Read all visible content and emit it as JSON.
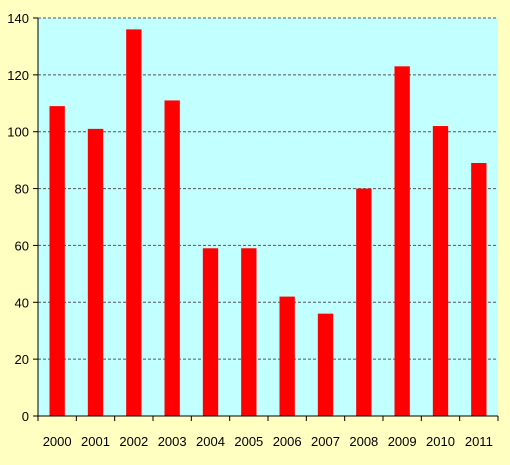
{
  "chart_data": {
    "type": "bar",
    "categories": [
      "2000",
      "2001",
      "2002",
      "2003",
      "2004",
      "2005",
      "2006",
      "2007",
      "2008",
      "2009",
      "2010",
      "2011"
    ],
    "values": [
      109,
      101,
      136,
      111,
      59,
      59,
      42,
      36,
      80,
      123,
      102,
      89
    ],
    "title": "",
    "xlabel": "",
    "ylabel": "",
    "ylim": [
      0,
      140
    ],
    "yticks": [
      0,
      20,
      40,
      60,
      80,
      100,
      120,
      140
    ],
    "grid": true,
    "legend": "none",
    "colors": {
      "bar": "#ff0000",
      "plot_background": "#c2ffff",
      "page_background": "#ffffc2",
      "gridline": "#555555"
    }
  }
}
